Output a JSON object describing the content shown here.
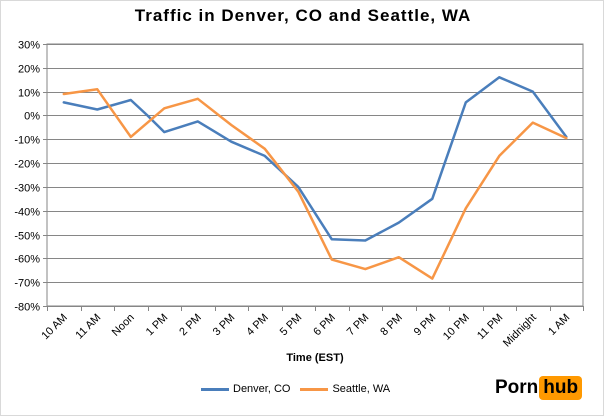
{
  "chart_data": {
    "type": "line",
    "title": "Traffic in Denver, CO and Seattle, WA",
    "xlabel": "Time (EST)",
    "ylabel": "",
    "ylim": [
      -80,
      30
    ],
    "yticks": [
      "30%",
      "20%",
      "10%",
      "0%",
      "-10%",
      "-20%",
      "-30%",
      "-40%",
      "-50%",
      "-60%",
      "-70%",
      "-80%"
    ],
    "ytick_values": [
      30,
      20,
      10,
      0,
      -10,
      -20,
      -30,
      -40,
      -50,
      -60,
      -70,
      -80
    ],
    "categories": [
      "10 AM",
      "11 AM",
      "Noon",
      "1 PM",
      "2 PM",
      "3 PM",
      "4 PM",
      "5 PM",
      "6 PM",
      "7 PM",
      "8 PM",
      "9 PM",
      "10 PM",
      "11 PM",
      "Midnight",
      "1 AM"
    ],
    "x_positions": [
      0,
      1,
      2,
      2.5,
      3,
      4,
      5,
      6,
      7,
      8,
      9,
      10,
      11,
      12,
      13,
      14,
      15,
      16
    ],
    "grid": true,
    "legend_position": "bottom",
    "series": [
      {
        "name": "Denver, CO",
        "color": "#4a7ebb",
        "points": [
          [
            0,
            5.5
          ],
          [
            1,
            2.5
          ],
          [
            2,
            6.5
          ],
          [
            2.5,
            0
          ],
          [
            3,
            -7
          ],
          [
            4,
            -2.5
          ],
          [
            5,
            -11
          ],
          [
            6,
            -17
          ],
          [
            7,
            -30
          ],
          [
            8,
            -52
          ],
          [
            9,
            -52.5
          ],
          [
            10,
            -45
          ],
          [
            11,
            -35
          ],
          [
            12,
            5.5
          ],
          [
            13,
            16
          ],
          [
            14,
            10
          ],
          [
            15,
            -9
          ]
        ]
      },
      {
        "name": "Seattle, WA",
        "color": "#f79646",
        "points": [
          [
            0,
            9
          ],
          [
            1,
            11
          ],
          [
            2,
            -9
          ],
          [
            3,
            3
          ],
          [
            4,
            7
          ],
          [
            5,
            -4
          ],
          [
            6,
            -14
          ],
          [
            7,
            -32
          ],
          [
            8,
            -60.5
          ],
          [
            9,
            -64.5
          ],
          [
            10,
            -59.5
          ],
          [
            11,
            -68.5
          ],
          [
            12,
            -39
          ],
          [
            13,
            -17
          ],
          [
            14,
            -3
          ],
          [
            15,
            -9.5
          ]
        ]
      }
    ]
  },
  "branding": {
    "logo_left": "Porn",
    "logo_right": "hub",
    "logo_color": "#ff9900"
  }
}
